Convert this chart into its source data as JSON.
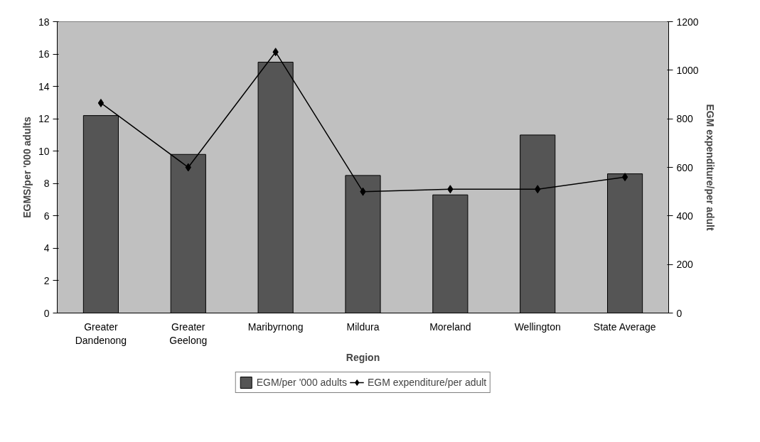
{
  "chart_data": {
    "type": "bar",
    "xlabel": "Region",
    "ylabel": "EGMS/per '000 adults",
    "y2label": "EGM expenditure/per adult",
    "categories": [
      "Greater\nDandenong",
      "Greater\nGeelong",
      "Maribyrnong",
      "Mildura",
      "Moreland",
      "Wellington",
      "State Average"
    ],
    "series": [
      {
        "name": "EGM/per '000 adults",
        "type": "bar",
        "color": "#555555",
        "values": [
          12.2,
          9.8,
          15.5,
          8.5,
          7.3,
          11.0,
          8.6
        ]
      },
      {
        "name": "EGM expenditure/per adult",
        "type": "line",
        "axis": "y2",
        "color": "#000000",
        "marker": "diamond",
        "values": [
          865,
          600,
          1075,
          500,
          510,
          510,
          560
        ]
      }
    ],
    "ylim": [
      0,
      18
    ],
    "yticks": [
      0,
      2,
      4,
      6,
      8,
      10,
      12,
      14,
      16,
      18
    ],
    "y2lim": [
      0,
      1200
    ],
    "y2ticks": [
      0,
      200,
      400,
      600,
      800,
      1000,
      1200
    ],
    "grid": false,
    "legend": "bottom"
  }
}
